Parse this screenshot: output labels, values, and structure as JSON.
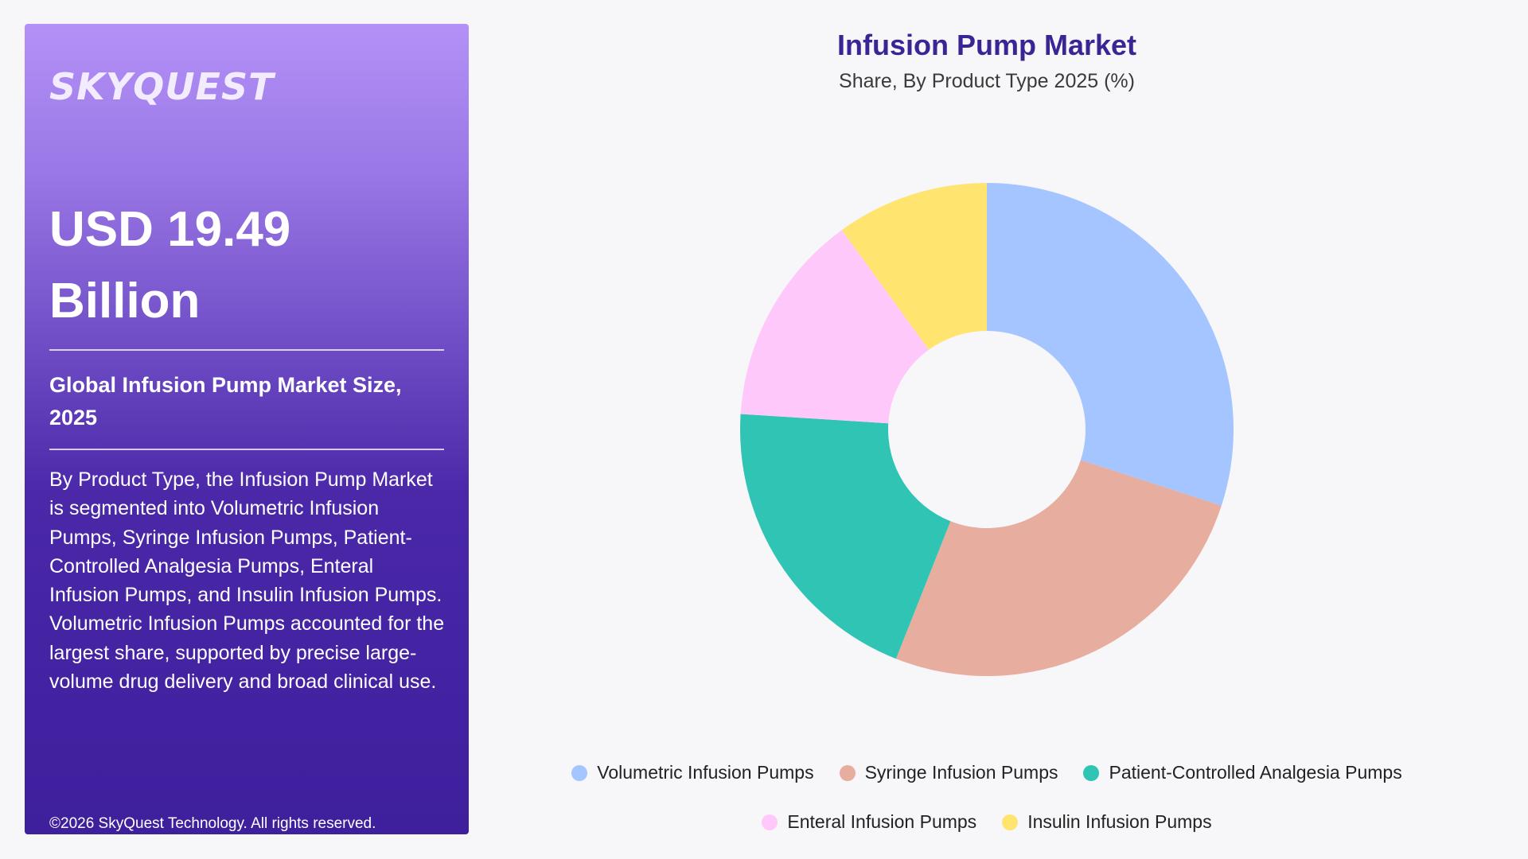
{
  "brand": {
    "logo_text": "SKYQUEST"
  },
  "summary": {
    "value": "USD 19.49 Billion",
    "subtitle": "Global Infusion Pump Market Size, 2025",
    "description": "By Product Type, the Infusion Pump Market is segmented into Volumetric Infusion Pumps, Syringe Infusion Pumps, Patient-Controlled Analgesia Pumps, Enteral Infusion Pumps, and Insulin Infusion Pumps. Volumetric Infusion Pumps accounted for the largest share, supported by precise large-volume drug delivery and broad clinical use.",
    "copyright": "©2026 SkyQuest Technology. All rights reserved."
  },
  "chart_data": {
    "type": "pie",
    "donut": true,
    "title": "Infusion Pump Market",
    "subtitle": "Share, By Product Type 2025 (%)",
    "categories": [
      "Volumetric Infusion Pumps",
      "Syringe Infusion Pumps",
      "Patient-Controlled Analgesia Pumps",
      "Enteral Infusion Pumps",
      "Insulin Infusion Pumps"
    ],
    "values": [
      30,
      26,
      20,
      14,
      10
    ],
    "colors": [
      "#a4c5ff",
      "#e7ad9f",
      "#2fc4b4",
      "#ffc8fb",
      "#ffe470"
    ],
    "legend_position": "bottom"
  }
}
